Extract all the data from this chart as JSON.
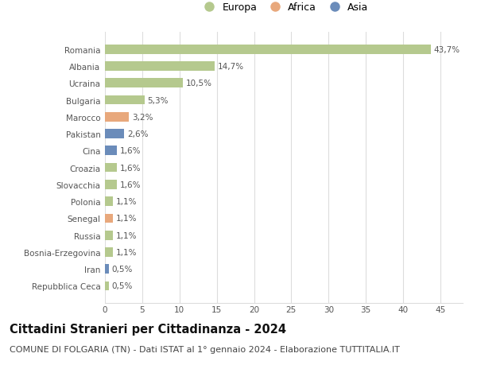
{
  "countries": [
    "Repubblica Ceca",
    "Iran",
    "Bosnia-Erzegovina",
    "Russia",
    "Senegal",
    "Polonia",
    "Slovacchia",
    "Croazia",
    "Cina",
    "Pakistan",
    "Marocco",
    "Bulgaria",
    "Ucraina",
    "Albania",
    "Romania"
  ],
  "values": [
    0.5,
    0.5,
    1.1,
    1.1,
    1.1,
    1.1,
    1.6,
    1.6,
    1.6,
    2.6,
    3.2,
    5.3,
    10.5,
    14.7,
    43.7
  ],
  "continents": [
    "Europa",
    "Asia",
    "Europa",
    "Europa",
    "Africa",
    "Europa",
    "Europa",
    "Europa",
    "Asia",
    "Asia",
    "Africa",
    "Europa",
    "Europa",
    "Europa",
    "Europa"
  ],
  "labels": [
    "0,5%",
    "0,5%",
    "1,1%",
    "1,1%",
    "1,1%",
    "1,1%",
    "1,6%",
    "1,6%",
    "1,6%",
    "2,6%",
    "3,2%",
    "5,3%",
    "10,5%",
    "14,7%",
    "43,7%"
  ],
  "continent_colors": {
    "Europa": "#b5c98e",
    "Africa": "#e8a87c",
    "Asia": "#6b8cba"
  },
  "legend_entries": [
    "Europa",
    "Africa",
    "Asia"
  ],
  "legend_colors": [
    "#b5c98e",
    "#e8a87c",
    "#6b8cba"
  ],
  "title": "Cittadini Stranieri per Cittadinanza - 2024",
  "subtitle": "COMUNE DI FOLGARIA (TN) - Dati ISTAT al 1° gennaio 2024 - Elaborazione TUTTITALIA.IT",
  "xlim": [
    0,
    48
  ],
  "xticks": [
    0,
    5,
    10,
    15,
    20,
    25,
    30,
    35,
    40,
    45
  ],
  "background_color": "#ffffff",
  "grid_color": "#dddddd",
  "bar_height": 0.55,
  "title_fontsize": 10.5,
  "subtitle_fontsize": 8,
  "label_fontsize": 7.5,
  "tick_fontsize": 7.5,
  "legend_fontsize": 9
}
